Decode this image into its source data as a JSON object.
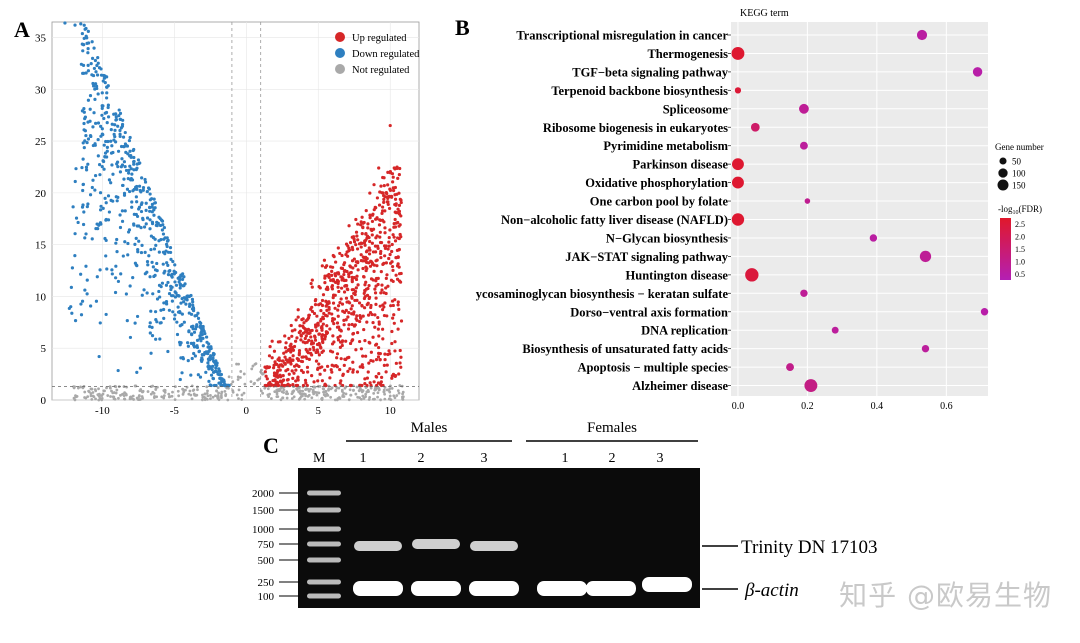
{
  "colors": {
    "up": "#d62728",
    "down": "#2e7fc0",
    "not": "#a9a9a9",
    "bubble_low": "#b41fb4",
    "bubble_high": "#e0182b",
    "gel_bg": "#0b0b0b",
    "band": "#f2f2f2"
  },
  "panels": {
    "a": "A",
    "b": "B",
    "c": "C"
  },
  "chart_data": [
    {
      "type": "scatter",
      "id": "volcano",
      "title": "",
      "xlabel": "",
      "ylabel": "",
      "xlim": [
        -13.5,
        12
      ],
      "ylim": [
        0,
        36.5
      ],
      "xticks": [
        -10,
        -5,
        0,
        5,
        10
      ],
      "yticks": [
        0,
        5,
        10,
        15,
        20,
        25,
        30,
        35
      ],
      "vlines": [
        -1,
        1
      ],
      "hline": 1.3,
      "legend": [
        "Up  regulated",
        "Down  regulated",
        "Not  regulated"
      ],
      "legend_position": "top-right",
      "series": [
        {
          "name": "Up regulated",
          "summary": "log2FC from 1 to 11, -log10(FDR) up to about 26.5, dense wedge around x 3 to 9"
        },
        {
          "name": "Down regulated",
          "summary": "log2FC from -1 to -13, -log10(FDR) up to about 36.5, dense ridge along x -11 to -2"
        },
        {
          "name": "Not regulated",
          "summary": "points near y below 1.5 across x -12 to 11"
        }
      ]
    },
    {
      "type": "scatter",
      "id": "kegg-bubble",
      "title": "KEGG term",
      "xlabel": "",
      "ylabel": "",
      "xlim": [
        -0.02,
        0.72
      ],
      "xticks": [
        0.0,
        0.2,
        0.4,
        0.6
      ],
      "size_legend_title": "Gene number",
      "size_legend": [
        50,
        100,
        150
      ],
      "color_legend_title": "-log10(FDR)",
      "color_legend_ticks": [
        "2.5",
        "2.0",
        "1.5",
        "1.0",
        "0.5"
      ],
      "color_range": [
        0.3,
        2.6
      ],
      "terms": [
        "Transcriptional misregulation in cancer",
        "Thermogenesis",
        "TGF−beta signaling pathway",
        "Terpenoid backbone biosynthesis",
        "Spliceosome",
        "Ribosome biogenesis in eukaryotes",
        "Pyrimidine metabolism",
        "Parkinson disease",
        "Oxidative phosphorylation",
        "One carbon pool by folate",
        "Non−alcoholic fatty liver disease (NAFLD)",
        "N−Glycan biosynthesis",
        "JAK−STAT signaling pathway",
        "Huntington disease",
        "ycosaminoglycan biosynthesis − keratan sulfate",
        "Dorso−ventral axis formation",
        "DNA replication",
        "Biosynthesis of unsaturated fatty acids",
        "Apoptosis − multiple species",
        "Alzheimer disease"
      ],
      "x": [
        0.53,
        0.0,
        0.69,
        0.0,
        0.19,
        0.05,
        0.19,
        0.0,
        0.0,
        0.2,
        0.0,
        0.39,
        0.54,
        0.04,
        0.19,
        0.71,
        0.28,
        0.54,
        0.15,
        0.21
      ],
      "size": [
        60,
        110,
        50,
        15,
        55,
        40,
        30,
        90,
        90,
        10,
        100,
        25,
        80,
        120,
        25,
        25,
        20,
        25,
        30,
        110
      ],
      "color": [
        0.6,
        2.5,
        0.5,
        2.4,
        0.8,
        1.6,
        0.7,
        2.5,
        2.5,
        0.9,
        2.5,
        0.6,
        0.8,
        2.3,
        0.8,
        0.5,
        0.7,
        0.7,
        1.0,
        1.1
      ]
    },
    {
      "type": "gel",
      "id": "rt-pcr-gel",
      "ladder_label": "M",
      "ladder_sizes": [
        "2000",
        "1500",
        "1000",
        "750",
        "500",
        "250",
        "100"
      ],
      "groups": [
        {
          "name": "Males",
          "lanes": [
            "1",
            "2",
            "3"
          ]
        },
        {
          "name": "Females",
          "lanes": [
            "1",
            "2",
            "3"
          ]
        }
      ],
      "band_labels": [
        "Trinity  DN 17103",
        "β-actin"
      ],
      "target_present": [
        1,
        1,
        1,
        0,
        0,
        0
      ],
      "actin_present": [
        1,
        1,
        1,
        1,
        1,
        1
      ]
    }
  ],
  "watermark": "知乎 @欧易生物"
}
